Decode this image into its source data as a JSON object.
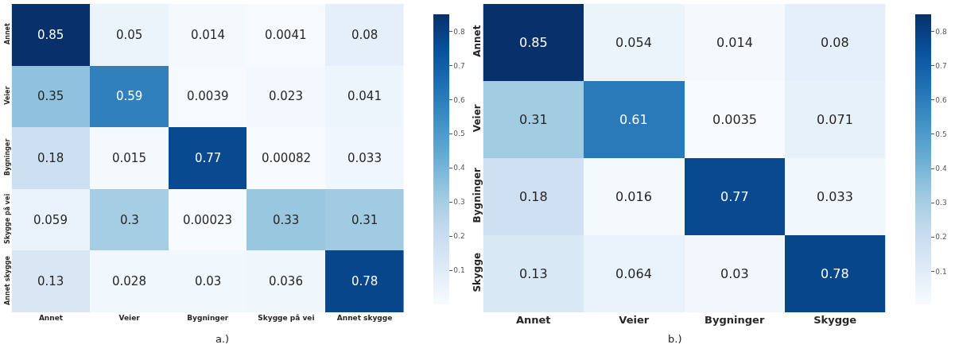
{
  "chart_data": [
    {
      "type": "heatmap",
      "categories": [
        "Annet",
        "Veier",
        "Bygninger",
        "Skygge på vei",
        "Annet skygge"
      ],
      "y_categories": [
        "Annet",
        "Veier",
        "Bygninger",
        "Skygge på vei",
        "Annet skygge"
      ],
      "cells": [
        [
          0.85,
          0.05,
          0.014,
          0.0041,
          0.08
        ],
        [
          0.35,
          0.59,
          0.0039,
          0.023,
          0.041
        ],
        [
          0.18,
          0.015,
          0.77,
          0.00082,
          0.033
        ],
        [
          0.059,
          0.3,
          0.00023,
          0.33,
          0.31
        ],
        [
          0.13,
          0.028,
          0.03,
          0.036,
          0.78
        ]
      ],
      "clim": [
        0.00023,
        0.85
      ],
      "cticks": [
        0.1,
        0.2,
        0.3,
        0.4,
        0.5,
        0.6,
        0.7,
        0.8
      ],
      "data_labels": true,
      "annotations": [
        "a.)"
      ]
    },
    {
      "type": "heatmap",
      "categories": [
        "Annet",
        "Veier",
        "Bygninger",
        "Skygge"
      ],
      "y_categories": [
        "Annet",
        "Veier",
        "Bygninger",
        "Skygge"
      ],
      "cells": [
        [
          0.85,
          0.054,
          0.014,
          0.08
        ],
        [
          0.31,
          0.61,
          0.0035,
          0.071
        ],
        [
          0.18,
          0.016,
          0.77,
          0.033
        ],
        [
          0.13,
          0.064,
          0.03,
          0.78
        ]
      ],
      "clim": [
        0.0035,
        0.85
      ],
      "cticks": [
        0.1,
        0.2,
        0.3,
        0.4,
        0.5,
        0.6,
        0.7,
        0.8
      ],
      "data_labels": true,
      "annotations": [
        "b.)"
      ]
    }
  ]
}
